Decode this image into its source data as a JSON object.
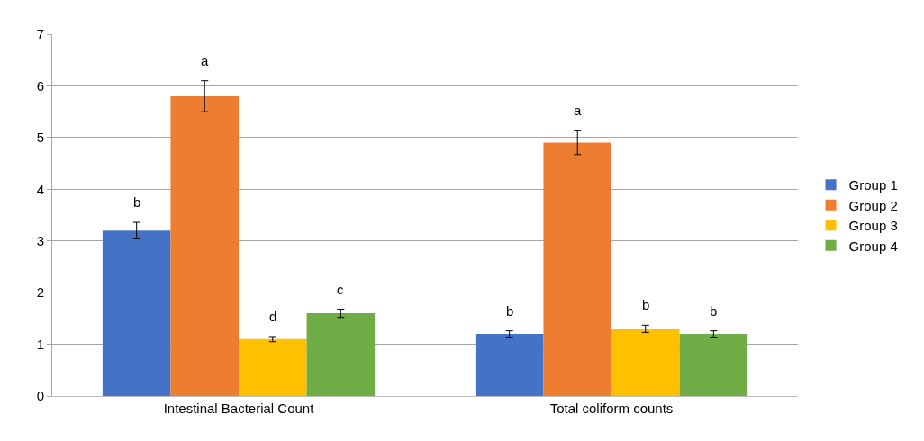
{
  "chart_data": {
    "type": "bar",
    "categories": [
      "Intestinal Bacterial Count",
      "Total coliform counts"
    ],
    "series": [
      {
        "name": "Group 1",
        "color": "#4472c4",
        "values": [
          3.2,
          1.2
        ],
        "errors": [
          0.16,
          0.06
        ],
        "value_labels": [
          "b",
          "b"
        ]
      },
      {
        "name": "Group 2",
        "color": "#ed7d31",
        "values": [
          5.8,
          4.9
        ],
        "errors": [
          0.3,
          0.23
        ],
        "value_labels": [
          "a",
          "a"
        ]
      },
      {
        "name": "Group 3",
        "color": "#ffc000",
        "values": [
          1.1,
          1.3
        ],
        "errors": [
          0.05,
          0.07
        ],
        "value_labels": [
          "d",
          "b"
        ]
      },
      {
        "name": "Group 4",
        "color": "#70ad47",
        "values": [
          1.6,
          1.2
        ],
        "errors": [
          0.08,
          0.06
        ],
        "value_labels": [
          "c",
          "b"
        ]
      }
    ],
    "ylim": [
      0,
      7
    ],
    "yticks": [
      0,
      1,
      2,
      3,
      4,
      5,
      6,
      7
    ],
    "grid": "y",
    "legend": "right"
  }
}
